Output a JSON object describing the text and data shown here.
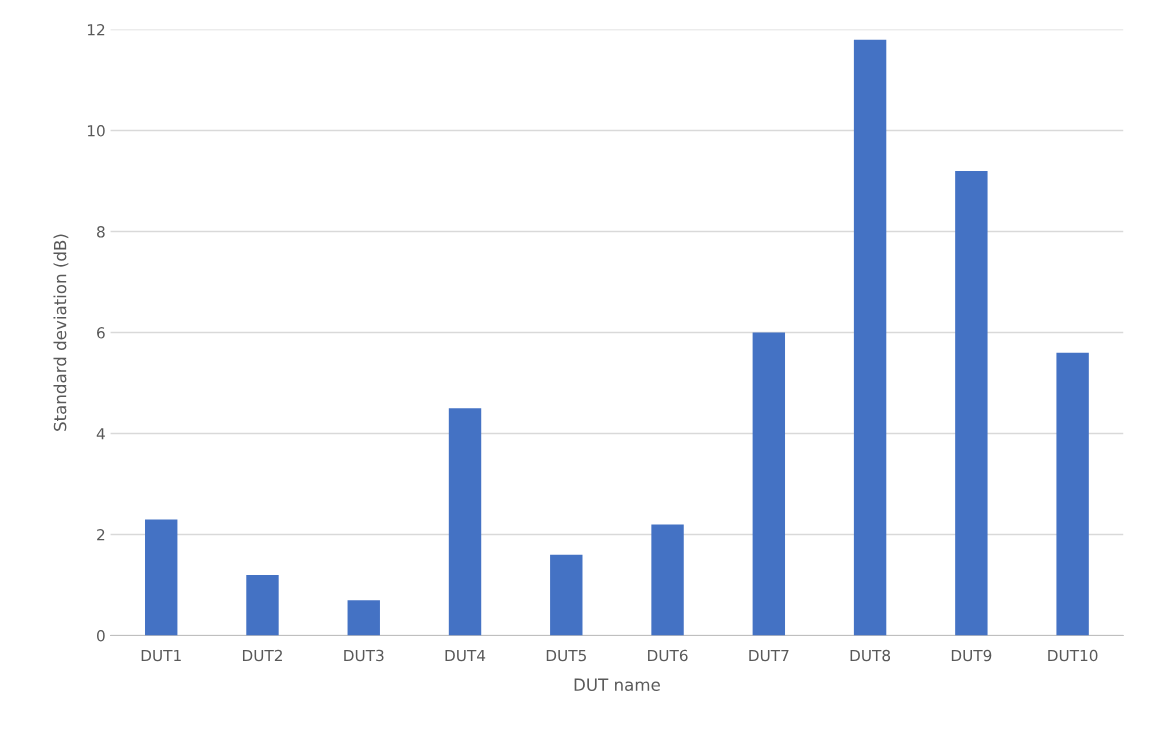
{
  "chart_data": {
    "type": "bar",
    "xlabel": "DUT name",
    "ylabel": "Standard deviation (dB)",
    "categories": [
      "DUT1",
      "DUT2",
      "DUT3",
      "DUT4",
      "DUT5",
      "DUT6",
      "DUT7",
      "DUT8",
      "DUT9",
      "DUT10"
    ],
    "values": [
      2.3,
      1.2,
      0.7,
      4.5,
      1.6,
      2.2,
      6.0,
      11.8,
      9.2,
      5.6
    ],
    "color": "#4472c4",
    "ylim": [
      0,
      12
    ],
    "yticks": [
      0,
      2,
      4,
      6,
      8,
      10,
      12
    ],
    "grid": "y"
  }
}
